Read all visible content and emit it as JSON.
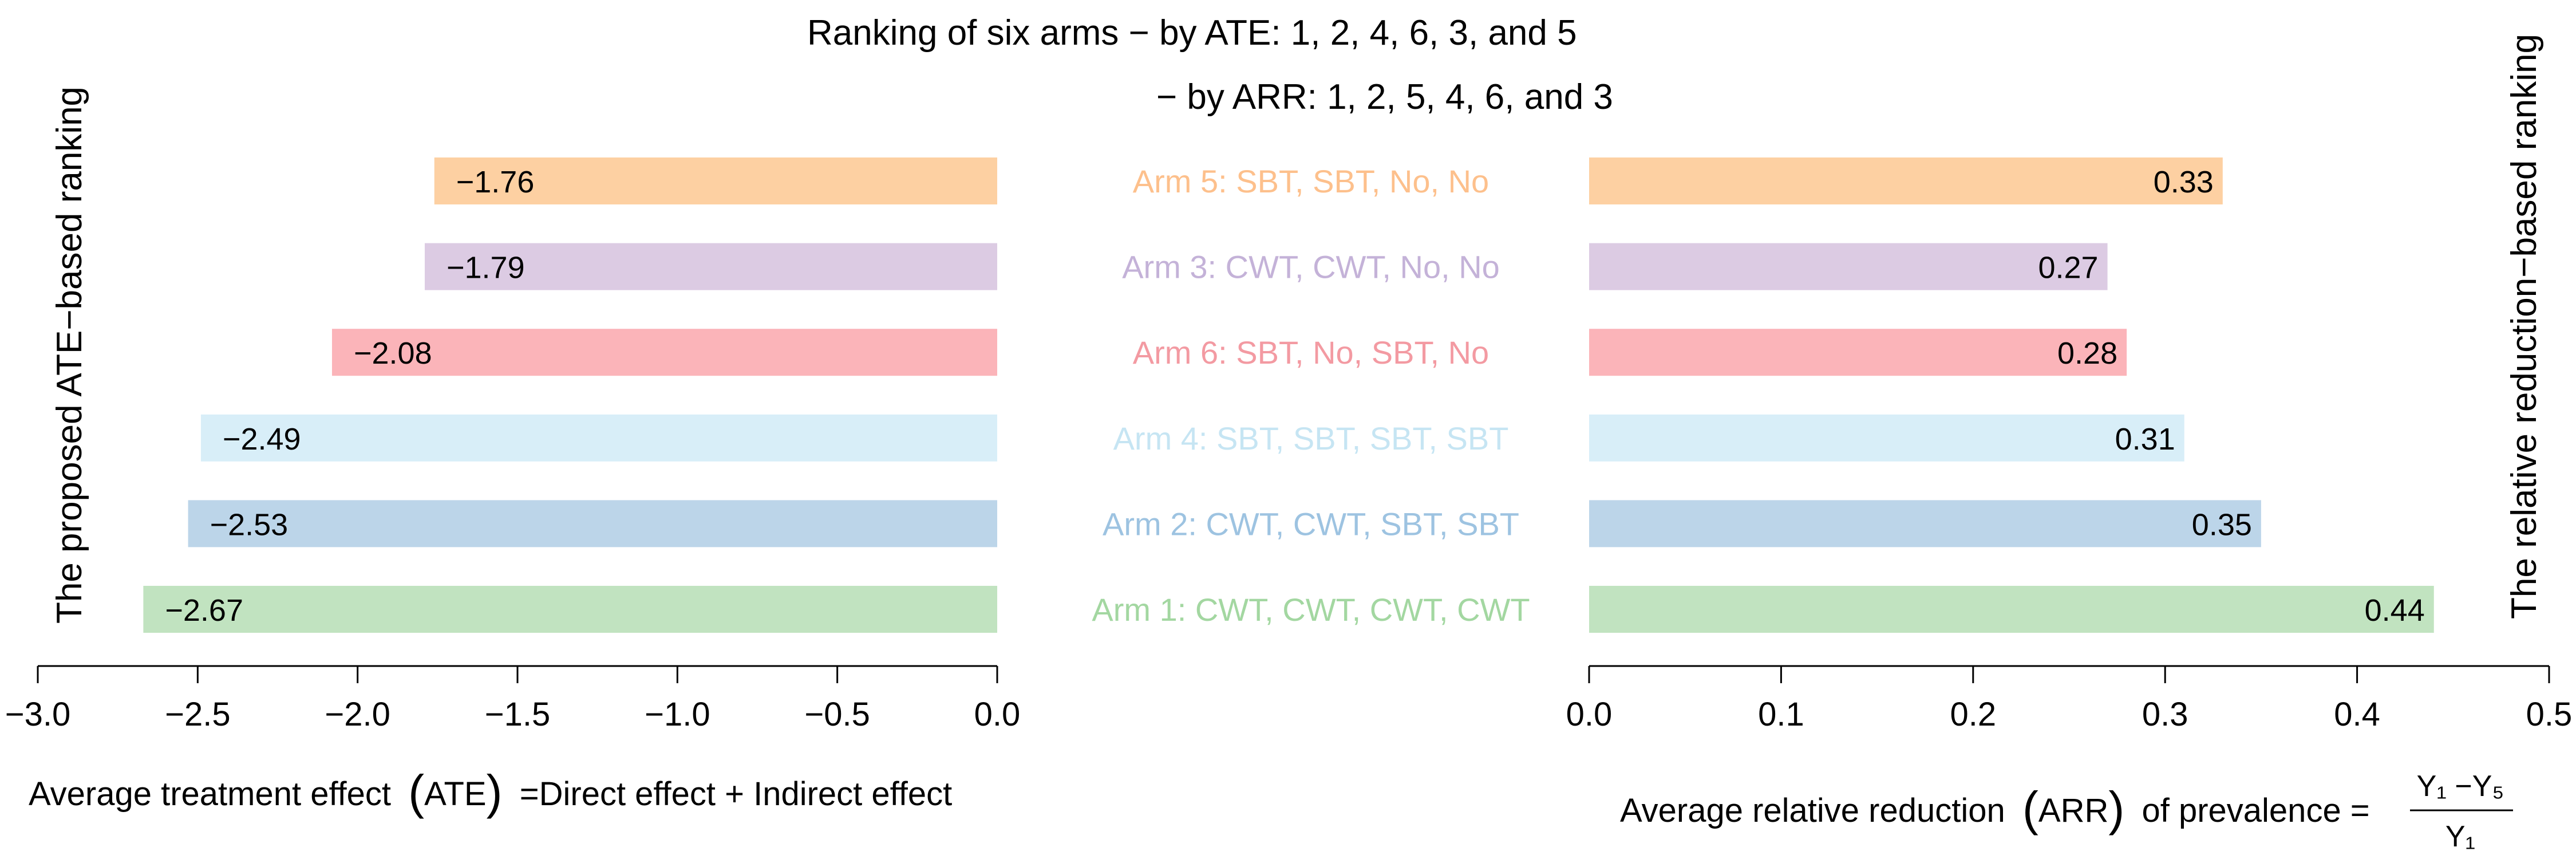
{
  "title_line1": "Ranking of six arms − by ATE:  1, 2, 4, 6, 3, and 5",
  "title_line2": "− by ARR: 1, 2, 5, 4, 6, and 3",
  "left_ylabel": "The proposed ATE−based ranking",
  "right_ylabel": "The relative reduction−based ranking",
  "left_xlabel": {
    "prefix": "Average treatment effect",
    "paren": "ATE",
    "suffix": "=Direct effect + Indirect effect"
  },
  "right_xlabel": {
    "prefix": "Average relative reduction",
    "paren": "ARR",
    "suffix": "of prevalence =",
    "numerator": "Y₁ −Y₅",
    "denominator": "Y₁"
  },
  "chart_data": {
    "type": "bar",
    "orientation": "horizontal",
    "categories": [
      "Arm 5: SBT, SBT, No, No",
      "Arm 3: CWT, CWT, No, No",
      "Arm 6: SBT, No, SBT, No",
      "Arm 4: SBT, SBT, SBT, SBT",
      "Arm 2: CWT, CWT, SBT, SBT",
      "Arm 1: CWT, CWT, CWT, CWT"
    ],
    "colors": [
      "#fdd0a2",
      "#dccbe3",
      "#fbb4b9",
      "#d8eef8",
      "#bcd5e9",
      "#c1e3c0"
    ],
    "label_colors": [
      "#fdc08c",
      "#c4b2d8",
      "#f39aa2",
      "#c6e5f3",
      "#9dc3e1",
      "#a3d7a1"
    ],
    "left_panel": {
      "values": [
        -1.76,
        -1.79,
        -2.08,
        -2.49,
        -2.53,
        -2.67
      ],
      "value_labels": [
        "−1.76",
        "−1.79",
        "−2.08",
        "−2.49",
        "−2.53",
        "−2.67"
      ],
      "xlim": [
        -3.0,
        0.0
      ],
      "ticks": [
        -3.0,
        -2.5,
        -2.0,
        -1.5,
        -1.0,
        -0.5,
        0.0
      ],
      "tick_labels": [
        "−3.0",
        "−2.5",
        "−2.0",
        "−1.5",
        "−1.0",
        "−0.5",
        "0.0"
      ]
    },
    "right_panel": {
      "values": [
        0.33,
        0.27,
        0.28,
        0.31,
        0.35,
        0.44
      ],
      "value_labels": [
        "0.33",
        "0.27",
        "0.28",
        "0.31",
        "0.35",
        "0.44"
      ],
      "xlim": [
        0.0,
        0.5
      ],
      "ticks": [
        0.0,
        0.1,
        0.2,
        0.3,
        0.4,
        0.5
      ],
      "tick_labels": [
        "0.0",
        "0.1",
        "0.2",
        "0.3",
        "0.4",
        "0.5"
      ]
    }
  }
}
